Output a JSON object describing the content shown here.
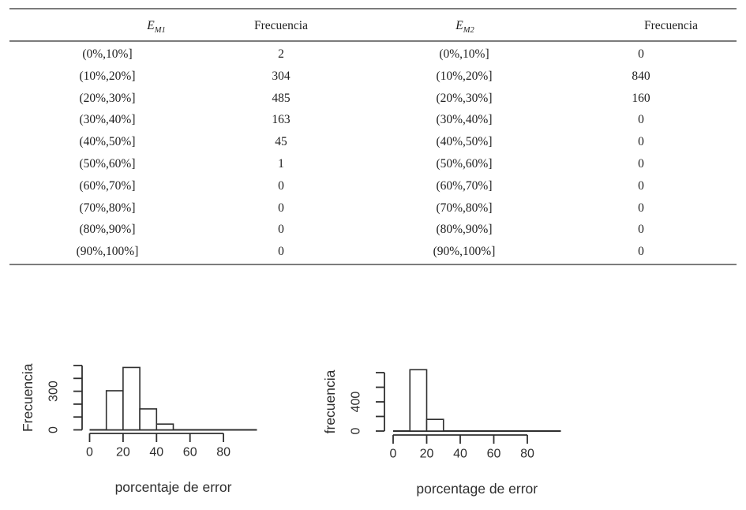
{
  "page": {
    "background": "#ffffff",
    "text_color": "#1e1e1e",
    "rule_color": "#7c7c7c"
  },
  "table": {
    "headers": [
      {
        "base": "E",
        "sub": "M1"
      },
      {
        "label": "Frecuencia"
      },
      {
        "base": "E",
        "sub": "M2"
      },
      {
        "label": "Frecuencia"
      }
    ],
    "rows": [
      {
        "e_m1": "(0%,10%]",
        "f_m1": "2",
        "e_m2": "(0%,10%]",
        "f_m2": "0"
      },
      {
        "e_m1": "(10%,20%]",
        "f_m1": "304",
        "e_m2": "(10%,20%]",
        "f_m2": "840"
      },
      {
        "e_m1": "(20%,30%]",
        "f_m1": "485",
        "e_m2": "(20%,30%]",
        "f_m2": "160"
      },
      {
        "e_m1": "(30%,40%]",
        "f_m1": "163",
        "e_m2": "(30%,40%]",
        "f_m2": "0"
      },
      {
        "e_m1": "(40%,50%]",
        "f_m1": "45",
        "e_m2": "(40%,50%]",
        "f_m2": "0"
      },
      {
        "e_m1": "(50%,60%]",
        "f_m1": "1",
        "e_m2": "(50%,60%]",
        "f_m2": "0"
      },
      {
        "e_m1": "(60%,70%]",
        "f_m1": "0",
        "e_m2": "(60%,70%]",
        "f_m2": "0"
      },
      {
        "e_m1": "(70%,80%]",
        "f_m1": "0",
        "e_m2": "(70%,80%]",
        "f_m2": "0"
      },
      {
        "e_m1": "(80%,90%]",
        "f_m1": "0",
        "e_m2": "(80%,90%]",
        "f_m2": "0"
      },
      {
        "e_m1": "(90%,100%]",
        "f_m1": "0",
        "e_m2": "(90%,100%]",
        "f_m2": "0"
      }
    ]
  },
  "chart_data": [
    {
      "type": "bar",
      "subtype": "histogram",
      "title": "",
      "xlabel": "porcentaje de error",
      "ylabel": "Frecuencia",
      "categories": [
        "(0,10]",
        "(10,20]",
        "(20,30]",
        "(30,40]",
        "(40,50]",
        "(50,60]",
        "(60,70]",
        "(70,80]",
        "(80,90]",
        "(90,100]"
      ],
      "values": [
        2,
        304,
        485,
        163,
        45,
        1,
        0,
        0,
        0,
        0
      ],
      "bins": {
        "start": 0,
        "width": 10
      },
      "xlim": [
        0,
        100
      ],
      "ylim": [
        0,
        500
      ],
      "x_ticks": [
        0,
        20,
        40,
        60,
        80
      ],
      "y_ticks": [
        0,
        100,
        200,
        300,
        400,
        500
      ],
      "y_tick_labels": [
        "0",
        "",
        "",
        "300",
        "",
        ""
      ],
      "grid": false,
      "legend": "none",
      "axis_color": "#2f2f2f",
      "bar_fill": "#ffffff"
    },
    {
      "type": "bar",
      "subtype": "histogram",
      "title": "",
      "xlabel": "porcentage de error",
      "ylabel": "frecuencia",
      "categories": [
        "(0,10]",
        "(10,20]",
        "(20,30]",
        "(30,40]",
        "(40,50]",
        "(50,60]",
        "(60,70]",
        "(70,80]",
        "(80,90]",
        "(90,100]"
      ],
      "values": [
        0,
        840,
        160,
        0,
        0,
        0,
        0,
        0,
        0,
        0
      ],
      "bins": {
        "start": 0,
        "width": 10
      },
      "xlim": [
        0,
        100
      ],
      "ylim": [
        0,
        800
      ],
      "x_ticks": [
        0,
        20,
        40,
        60,
        80
      ],
      "y_ticks": [
        0,
        200,
        400,
        600,
        800
      ],
      "y_tick_labels": [
        "0",
        "",
        "400",
        "",
        ""
      ],
      "grid": false,
      "legend": "none",
      "axis_color": "#2f2f2f",
      "bar_fill": "#ffffff"
    }
  ]
}
